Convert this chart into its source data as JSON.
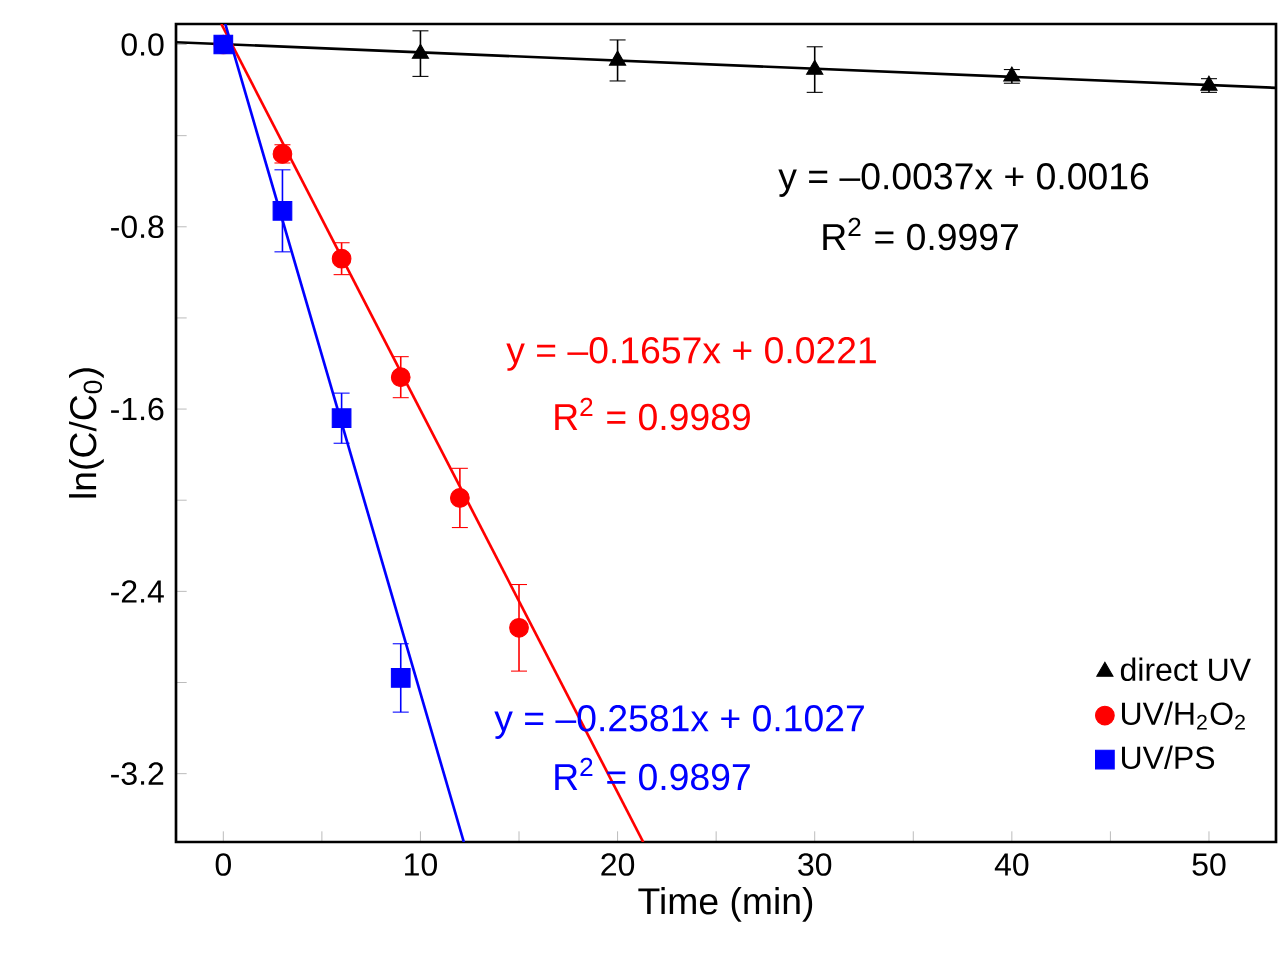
{
  "chart_data": {
    "type": "scatter",
    "xlabel": "Time (min)",
    "ylabel": "ln(C/C$_{0}$)",
    "xlim": [
      -2.4,
      53.4
    ],
    "ylim": [
      -3.5,
      0.09
    ],
    "xticks": [
      0,
      {
        "value": 5,
        "label": null
      },
      10,
      {
        "value": 15,
        "label": null
      },
      20,
      {
        "value": 25,
        "label": null
      },
      30,
      {
        "value": 35,
        "label": null
      },
      40,
      {
        "value": 45,
        "label": null
      },
      50
    ],
    "yticks": [
      {
        "value": -3.2,
        "label": "-3.2"
      },
      {
        "value": -2.8,
        "label": null
      },
      {
        "value": -2.4,
        "label": "-2.4"
      },
      {
        "value": -2.0,
        "label": null
      },
      {
        "value": -1.6,
        "label": "-1.6"
      },
      {
        "value": -1.2,
        "label": null
      },
      {
        "value": -0.8,
        "label": "-0.8"
      },
      {
        "value": -0.4,
        "label": null
      },
      {
        "value": 0,
        "label": "0.0"
      }
    ],
    "legend": "bottom right",
    "grid": false,
    "series": [
      {
        "name": "direct UV",
        "color": "#000000",
        "marker": "triangle",
        "x": [
          10,
          20,
          30,
          40,
          50
        ],
        "values": [
          -0.04,
          -0.07,
          -0.11,
          -0.14,
          -0.18
        ],
        "errors": [
          0.1,
          0.09,
          0.1,
          0.03,
          0.03
        ]
      },
      {
        "name": "UV/H$_{2}$O$_{2}$",
        "color": "#ff0000",
        "marker": "circle",
        "x": [
          0,
          3,
          6,
          9,
          12,
          15
        ],
        "values": [
          0,
          -0.48,
          -0.94,
          -1.46,
          -1.99,
          -2.56
        ],
        "errors": [
          null,
          0.04,
          0.07,
          0.09,
          0.13,
          0.19
        ]
      },
      {
        "name": "UV/PS",
        "color": "#0000ff",
        "marker": "square",
        "x": [
          0,
          3,
          6,
          9
        ],
        "values": [
          0,
          -0.73,
          -1.64,
          -2.78
        ],
        "errors": [
          null,
          0.18,
          0.11,
          0.15
        ]
      },
      {
        "type": "line",
        "color": "#000000",
        "marker": "none",
        "x": [
          -2.4,
          53.4
        ],
        "values": [
          0.01,
          -0.19
        ]
      },
      {
        "type": "line",
        "color": "#ff0000",
        "marker": "none",
        "x": [
          -0.1,
          21.3
        ],
        "values": [
          0.09,
          -3.5
        ]
      },
      {
        "type": "line",
        "color": "#0000ff",
        "marker": "none",
        "x": [
          0.1,
          12.2
        ],
        "values": [
          0.09,
          -3.5
        ]
      }
    ],
    "annotations": [
      "y = –0.0037x + 0.0016",
      "R$^{2}$ = 0.9997",
      "y = –0.1657x + 0.0221",
      "R$^{2}$ = 0.9989",
      "y = –0.2581x + 0.1027",
      "R$^{2}$ = 0.9897"
    ]
  }
}
